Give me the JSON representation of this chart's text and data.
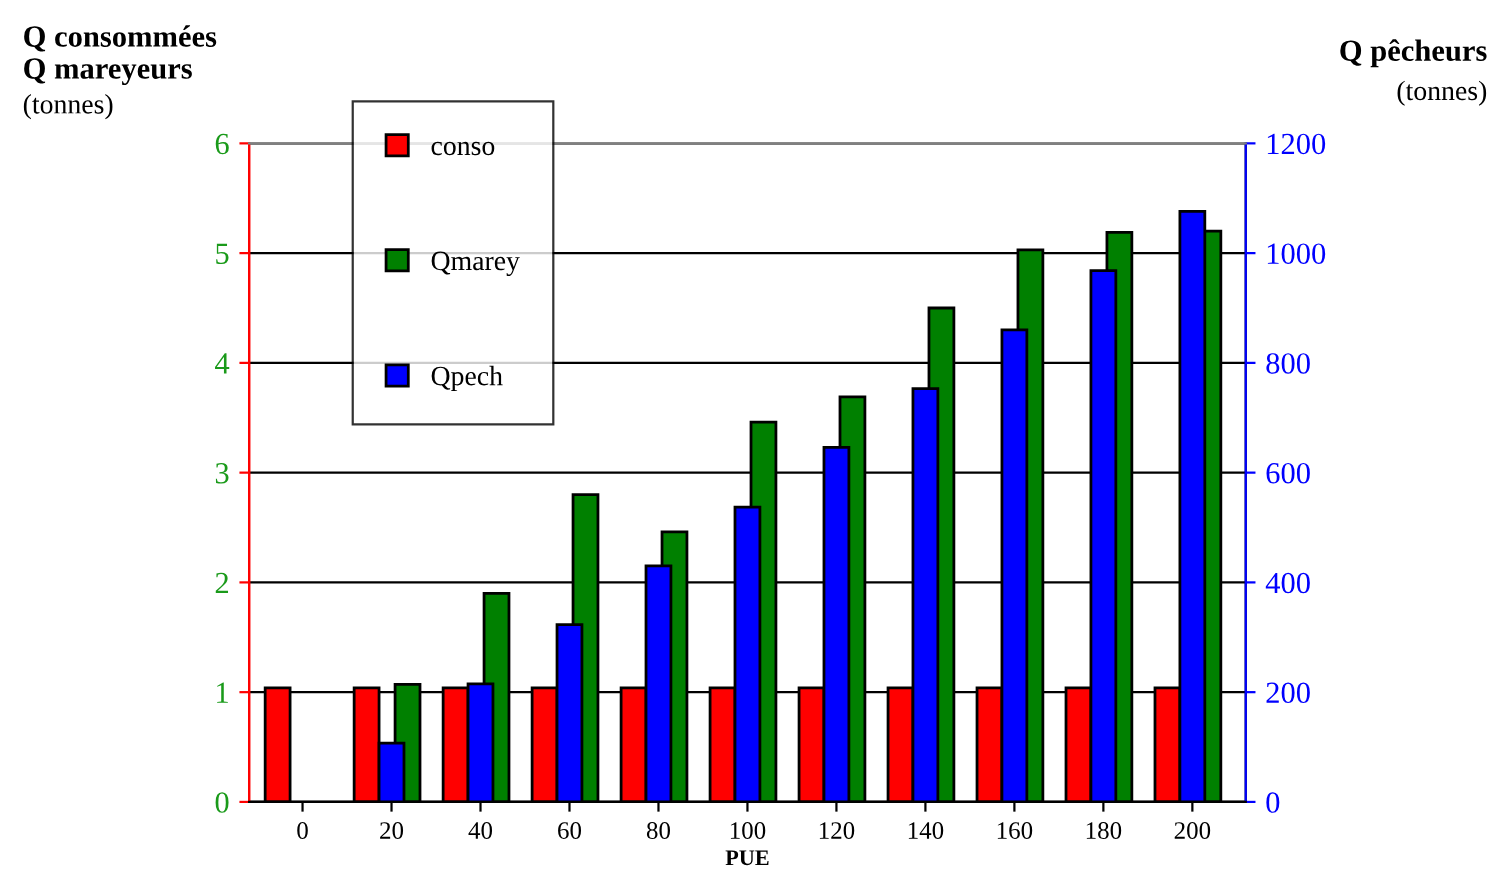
{
  "chart_data": {
    "type": "bar",
    "categories": [
      "0",
      "20",
      "40",
      "60",
      "80",
      "100",
      "120",
      "140",
      "160",
      "180",
      "200"
    ],
    "series": [
      {
        "name": "conso",
        "color": "#ff0000",
        "values": [
          1.04,
          1.04,
          1.04,
          1.04,
          1.04,
          1.04,
          1.04,
          1.04,
          1.04,
          1.04,
          1.04
        ]
      },
      {
        "name": "Qmarey",
        "color": "#008000",
        "values": [
          null,
          1.07,
          1.9,
          2.8,
          2.46,
          3.46,
          3.69,
          4.5,
          5.03,
          5.19,
          5.2
        ]
      },
      {
        "name": "Qpech",
        "color": "#0000ff",
        "axis": "y2",
        "values": [
          null,
          107,
          215,
          323,
          430,
          537,
          646,
          753,
          860,
          968,
          1076
        ]
      }
    ],
    "xlabel": "PUE",
    "ylabel": "Q consommées\nQ mareyeurs",
    "y2label": "Q pêcheurs",
    "annotations": [
      "(tonnes)",
      "(tonnes)"
    ],
    "ylim": [
      0,
      6
    ],
    "yticks": [
      0,
      1,
      2,
      3,
      4,
      5,
      6
    ],
    "y2lim": [
      0,
      1200
    ],
    "y2ticks": [
      0,
      200,
      400,
      600,
      800,
      1000,
      1200
    ],
    "grid": "y",
    "legend": "top left"
  }
}
